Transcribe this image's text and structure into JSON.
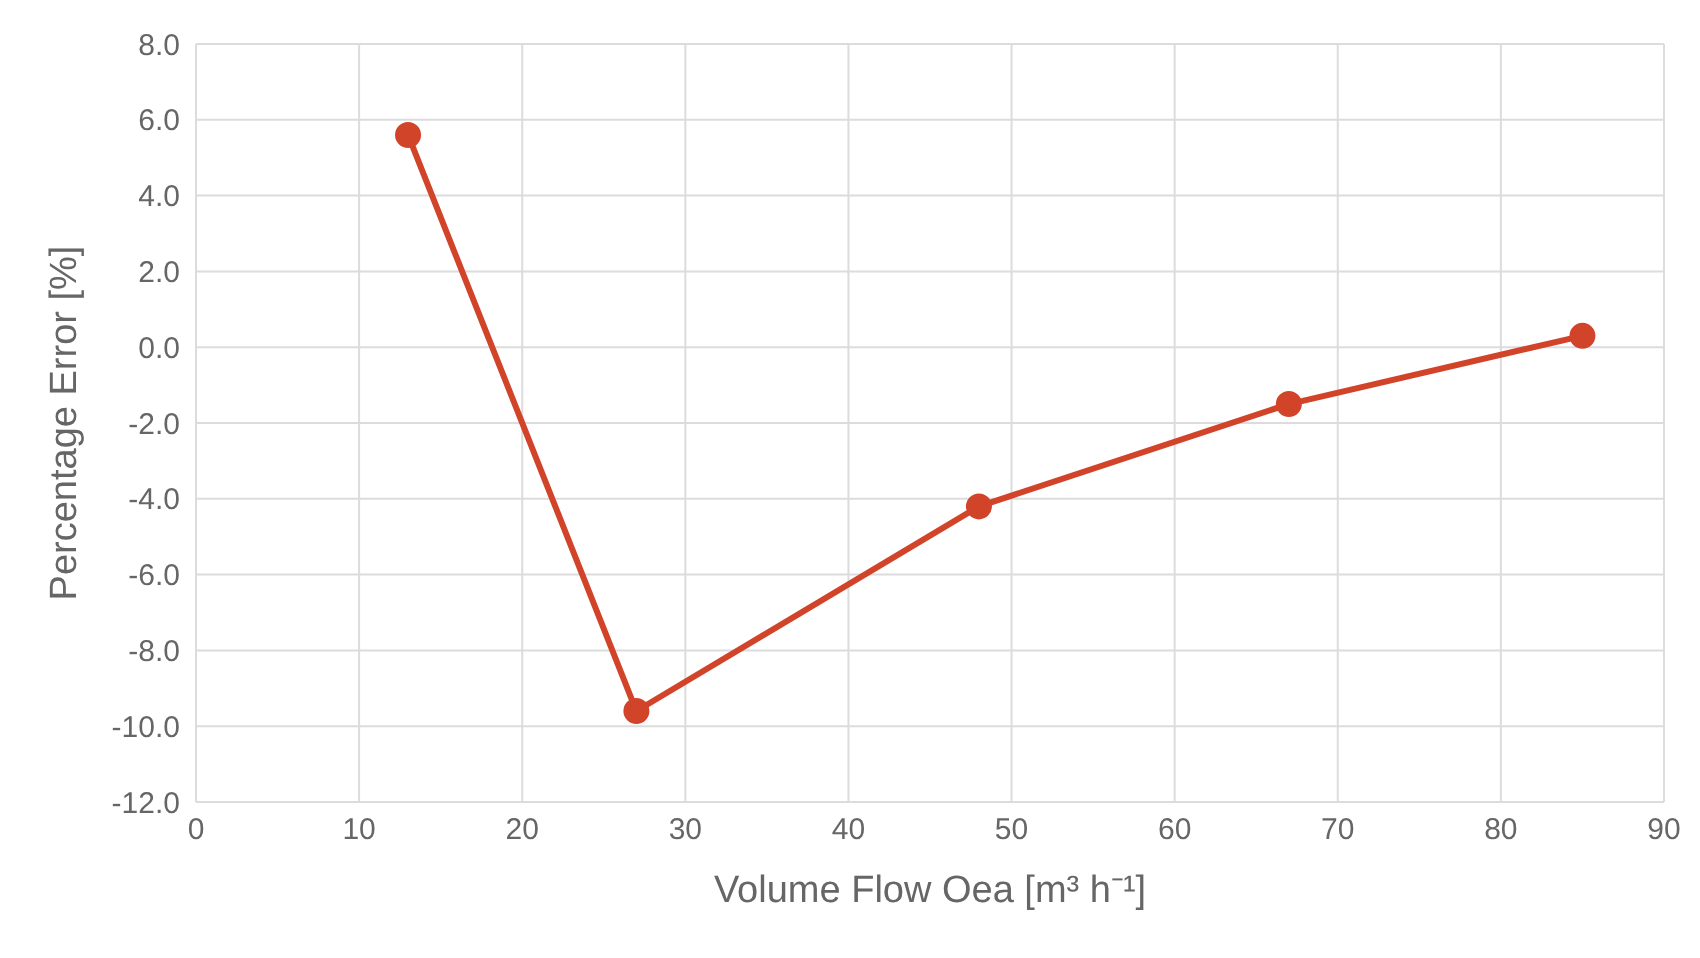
{
  "chart_data": {
    "type": "line",
    "xlabel": "Volume Flow Oea [m³ h⁻¹]",
    "ylabel": "Percentage Error [%]",
    "x": [
      13,
      27,
      48,
      67,
      85
    ],
    "series": [
      {
        "color": "#d1442a",
        "values": [
          5.6,
          -9.6,
          -4.2,
          -1.5,
          0.3
        ]
      }
    ],
    "xlim": [
      0,
      90
    ],
    "xticks": [
      0,
      10,
      20,
      30,
      40,
      50,
      60,
      70,
      80,
      90
    ],
    "ylim": [
      -12,
      8
    ],
    "yticks": [
      {
        "value": -12,
        "label": "-12.0"
      },
      {
        "value": -10,
        "label": "-10.0"
      },
      {
        "value": -8,
        "label": "-8.0"
      },
      {
        "value": -6,
        "label": "-6.0"
      },
      {
        "value": -4,
        "label": "-4.0"
      },
      {
        "value": -2,
        "label": "-2.0"
      },
      {
        "value": 0,
        "label": "0.0"
      },
      {
        "value": 2,
        "label": "2.0"
      },
      {
        "value": 4,
        "label": "4.0"
      },
      {
        "value": 6,
        "label": "6.0"
      },
      {
        "value": 8,
        "label": "8.0"
      }
    ],
    "grid": true,
    "marker": "circle",
    "line_style": "solid",
    "legend": false
  }
}
